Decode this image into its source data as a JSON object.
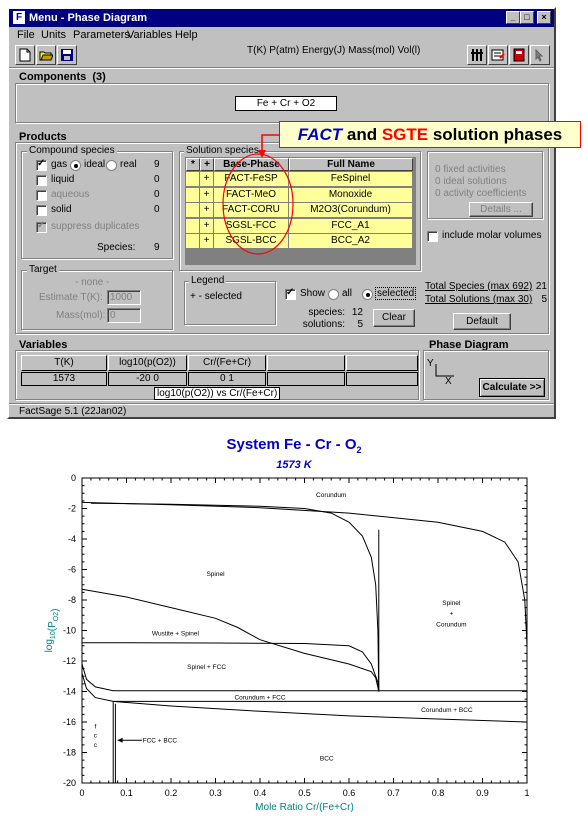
{
  "window": {
    "title": "Menu - Phase Diagram",
    "logo": "F",
    "controls": {
      "minimize": "_",
      "maximize": "□",
      "close": "×"
    }
  },
  "menu": [
    "File",
    "Units",
    "Parameters",
    "Variables",
    "Help"
  ],
  "units_text": "T(K) P(atm) Energy(J) Mass(mol) Vol(l)",
  "components": {
    "label": "Components",
    "count": "(3)",
    "formula": "Fe + Cr + O2"
  },
  "products": {
    "label": "Products",
    "compound_species": {
      "label": "Compound species",
      "rows": [
        {
          "name": "gas",
          "checked": true,
          "count": "9",
          "ideal": "ideal",
          "real": "real"
        },
        {
          "name": "liquid",
          "checked": false,
          "count": "0"
        },
        {
          "name": "aqueous",
          "checked": false,
          "count": "0",
          "disabled": true
        },
        {
          "name": "solid",
          "checked": false,
          "count": "0"
        }
      ],
      "suppress_duplicates": "suppress duplicates",
      "species_label": "Species:",
      "species_count": "9"
    },
    "target": {
      "label": "Target",
      "none": "- none -",
      "estimate_label": "Estimate T(K):",
      "estimate_value": "1000",
      "mass_label": "Mass(mol):",
      "mass_value": "0"
    },
    "solution_species": {
      "label": "Solution species",
      "headers": {
        "star": "*",
        "plus": "+",
        "base_phase": "Base-Phase",
        "full_name": "Full Name"
      },
      "rows": [
        {
          "plus": "+",
          "base": "FACT-FeSP",
          "full": "FeSpinel"
        },
        {
          "plus": "+",
          "base": "FACT-MeO",
          "full": "Monoxide"
        },
        {
          "plus": "+",
          "base": "FACT-CORU",
          "full": "M2O3(Corundum)"
        },
        {
          "plus": "+",
          "base": "SGSL-FCC",
          "full": "FCC_A1"
        },
        {
          "plus": "+",
          "base": "SGSL-BCC",
          "full": "BCC_A2"
        }
      ]
    },
    "legend": {
      "label": "Legend",
      "text": "+ - selected"
    },
    "show": {
      "label": "Show",
      "all": "all",
      "selected": "selected"
    },
    "species_label": "species:",
    "species_value": "12",
    "solutions_label": "solutions:",
    "solutions_value": "5",
    "clear": "Clear",
    "right_panel": {
      "lines": [
        "0 fixed activities",
        "0 ideal solutions",
        "0 activity coefficients"
      ],
      "details": "Details ..."
    },
    "include_molar_volumes": "include molar volumes",
    "total_species_label": "Total Species (max 692)",
    "total_species_value": "21",
    "total_solutions_label": "Total Solutions (max 30)",
    "total_solutions_value": "5",
    "default_button": "Default"
  },
  "callout": {
    "part1": "FACT",
    "part2": " and ",
    "part3": "SGTE",
    "part4": " solution phases",
    "colors": {
      "fact": "#0000cc",
      "sgte": "#ff0000",
      "bg": "#ffffcc",
      "border": "#ff0000"
    }
  },
  "variables": {
    "label": "Variables",
    "headers": [
      "T(K)",
      "log10(p(O2))",
      "Cr/(Fe+Cr)",
      "",
      ""
    ],
    "values": [
      "1573",
      "-20 0",
      "0 1",
      "",
      ""
    ],
    "axes_text": "log10(p(O2))  vs  Cr/(Fe+Cr)"
  },
  "phase_diagram": {
    "label": "Phase Diagram",
    "y": "Y",
    "x": "X",
    "calculate": "Calculate >>"
  },
  "status": "FactSage 5.1  (22Jan02)",
  "chart_data": {
    "type": "line",
    "title": "System Fe - Cr - O",
    "title_subscript": "2",
    "subtitle": "1573 K",
    "xlabel": "Mole Ratio Cr/(Fe+Cr)",
    "ylabel": "log",
    "ylabel_sub": "10",
    "ylabel_rest": "(P",
    "ylabel_sub2": "O2",
    "ylabel_end": ")",
    "xlim": [
      0,
      1
    ],
    "ylim": [
      -20,
      0
    ],
    "xticks": [
      "0",
      "0.1",
      "0.2",
      "0.3",
      "0.4",
      "0.5",
      "0.6",
      "0.7",
      "0.8",
      "0.9",
      "1"
    ],
    "yticks": [
      "0",
      "-2",
      "-4",
      "-6",
      "-8",
      "-10",
      "-12",
      "-14",
      "-16",
      "-18",
      "-20"
    ],
    "colors": {
      "title": "#0000cc",
      "axis_label": "#008080",
      "line": "#000000"
    },
    "lines": [
      {
        "name": "",
        "points": [
          [
            0,
            -1.6
          ],
          [
            0.2,
            -1.75
          ],
          [
            0.4,
            -1.95
          ],
          [
            0.6,
            -2.3
          ],
          [
            0.8,
            -2.9
          ],
          [
            0.9,
            -3.5
          ],
          [
            0.95,
            -4.2
          ],
          [
            0.98,
            -5.5
          ],
          [
            0.995,
            -8
          ],
          [
            1.0,
            -11
          ]
        ]
      },
      {
        "name": "",
        "points": [
          [
            0.02,
            -1.65
          ],
          [
            0.2,
            -1.72
          ],
          [
            0.4,
            -1.85
          ],
          [
            0.5,
            -2.0
          ],
          [
            0.56,
            -2.3
          ],
          [
            0.6,
            -2.9
          ],
          [
            0.63,
            -3.8
          ],
          [
            0.65,
            -5.2
          ],
          [
            0.66,
            -7
          ],
          [
            0.665,
            -10
          ],
          [
            0.667,
            -14
          ]
        ]
      },
      {
        "name": "",
        "points": [
          [
            0.667,
            -3.4
          ],
          [
            0.667,
            -14
          ]
        ]
      },
      {
        "name": "",
        "points": [
          [
            0,
            -7.3
          ],
          [
            0.1,
            -7.8
          ],
          [
            0.2,
            -8.5
          ],
          [
            0.3,
            -9.2
          ],
          [
            0.35,
            -9.8
          ],
          [
            0.4,
            -10.6
          ],
          [
            0.5,
            -11.5
          ],
          [
            0.6,
            -12.2
          ],
          [
            0.65,
            -12.7
          ],
          [
            0.66,
            -13.1
          ],
          [
            0.667,
            -14
          ]
        ]
      },
      {
        "name": "",
        "points": [
          [
            0,
            -10.8
          ],
          [
            0.3,
            -10.82
          ],
          [
            0.5,
            -10.85
          ],
          [
            0.6,
            -11.0
          ],
          [
            0.63,
            -11.4
          ],
          [
            0.65,
            -12.2
          ],
          [
            0.665,
            -13.4
          ],
          [
            0.667,
            -14
          ]
        ]
      },
      {
        "name": "",
        "points": [
          [
            0,
            -12.2
          ],
          [
            0.01,
            -13.2
          ],
          [
            0.03,
            -13.7
          ],
          [
            0.07,
            -13.95
          ],
          [
            0.3,
            -13.95
          ],
          [
            0.667,
            -13.95
          ],
          [
            1.0,
            -13.95
          ]
        ]
      },
      {
        "name": "",
        "points": [
          [
            0,
            -12.8
          ],
          [
            0.01,
            -13.8
          ],
          [
            0.03,
            -14.4
          ],
          [
            0.07,
            -14.65
          ],
          [
            0.3,
            -14.65
          ],
          [
            0.667,
            -14.65
          ],
          [
            1.0,
            -14.65
          ]
        ]
      },
      {
        "name": "",
        "points": [
          [
            0.07,
            -14.65
          ],
          [
            0.2,
            -14.95
          ],
          [
            0.4,
            -15.3
          ],
          [
            0.6,
            -15.6
          ],
          [
            0.8,
            -15.8
          ],
          [
            1.0,
            -16.0
          ]
        ]
      },
      {
        "name": "",
        "points": [
          [
            0.07,
            -14.65
          ],
          [
            0.07,
            -20
          ]
        ]
      },
      {
        "name": "",
        "points": [
          [
            0.075,
            -14.8
          ],
          [
            0.075,
            -20
          ]
        ]
      }
    ],
    "annotations": [
      {
        "text": "Corundum",
        "x": 0.56,
        "y": -1.1
      },
      {
        "text": "Spinel",
        "x": 0.3,
        "y": -6.3
      },
      {
        "text": "Spinel",
        "x": 0.83,
        "y": -8.2
      },
      {
        "text": "+",
        "x": 0.83,
        "y": -8.9
      },
      {
        "text": "Corundum",
        "x": 0.83,
        "y": -9.6
      },
      {
        "text": "Wustite + Spinel",
        "x": 0.21,
        "y": -10.2
      },
      {
        "text": "Spinel + FCC",
        "x": 0.28,
        "y": -12.4
      },
      {
        "text": "Corundum + FCC",
        "x": 0.4,
        "y": -14.4
      },
      {
        "text": "Corundum + BCC",
        "x": 0.82,
        "y": -15.2
      },
      {
        "text": "f",
        "x": 0.03,
        "y": -16.3
      },
      {
        "text": "c",
        "x": 0.03,
        "y": -16.9
      },
      {
        "text": "c",
        "x": 0.03,
        "y": -17.5
      },
      {
        "text": "FCC + BCC",
        "x": 0.175,
        "y": -17.2
      },
      {
        "text": "BCC",
        "x": 0.55,
        "y": -18.4
      }
    ],
    "arrow": {
      "from": [
        0.135,
        -17.2
      ],
      "to": [
        0.08,
        -17.2
      ]
    }
  }
}
